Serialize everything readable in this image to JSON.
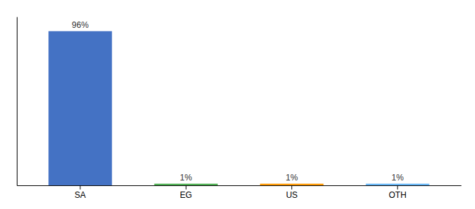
{
  "chart_data": {
    "type": "bar",
    "categories": [
      "SA",
      "EG",
      "US",
      "OTH"
    ],
    "values": [
      96,
      1,
      1,
      1
    ],
    "value_labels": [
      "96%",
      "1%",
      "1%",
      "1%"
    ],
    "colors": [
      "#4472c4",
      "#4caf50",
      "#ff9800",
      "#64b5f6"
    ],
    "ylim": [
      0,
      105
    ],
    "grid": false,
    "data_labels": true,
    "tick_labels": "x"
  }
}
